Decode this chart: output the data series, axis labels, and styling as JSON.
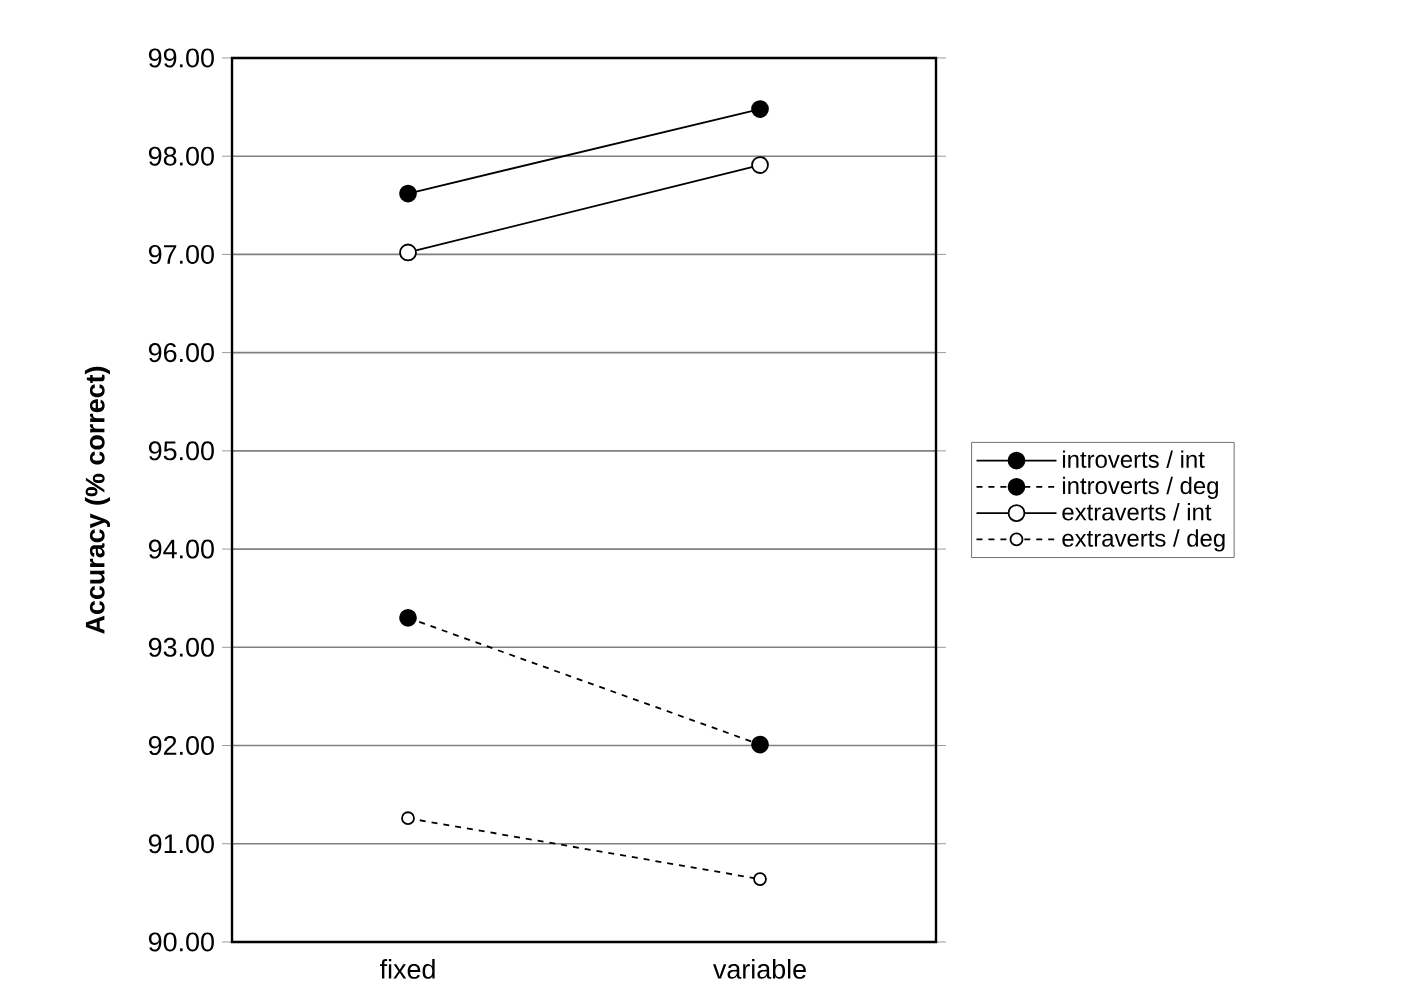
{
  "chart_data": {
    "type": "line",
    "ylabel": "Accuracy (% correct)",
    "categories": [
      "fixed",
      "variable"
    ],
    "series": [
      {
        "name": "introverts / int",
        "color": "#000000",
        "values": [
          97.62,
          98.48
        ],
        "line_style": "solid",
        "marker": "circle"
      },
      {
        "name": "introverts / deg",
        "color": "#000000",
        "values": [
          93.3,
          92.01
        ],
        "line_style": "dashed",
        "marker": "circle"
      },
      {
        "name": "extraverts / int",
        "color": "#ffffff",
        "values": [
          97.02,
          97.91
        ],
        "line_style": "solid",
        "marker": "circle"
      },
      {
        "name": "extraverts / deg",
        "color": "#ffffff",
        "values": [
          91.26,
          90.64
        ],
        "line_style": "dashed",
        "marker": "circle"
      }
    ],
    "ylim": [
      90,
      99
    ],
    "yticks": [
      {
        "value": 90,
        "label": "90.00"
      },
      {
        "value": 91,
        "label": "91.00"
      },
      {
        "value": 92,
        "label": "92.00"
      },
      {
        "value": 93,
        "label": "93.00"
      },
      {
        "value": 94,
        "label": "94.00"
      },
      {
        "value": 95,
        "label": "95.00"
      },
      {
        "value": 96,
        "label": "96.00"
      },
      {
        "value": 97,
        "label": "97.00"
      },
      {
        "value": 98,
        "label": "98.00"
      },
      {
        "value": 99,
        "label": "99.00"
      }
    ],
    "grid": "y",
    "legend": "right"
  }
}
